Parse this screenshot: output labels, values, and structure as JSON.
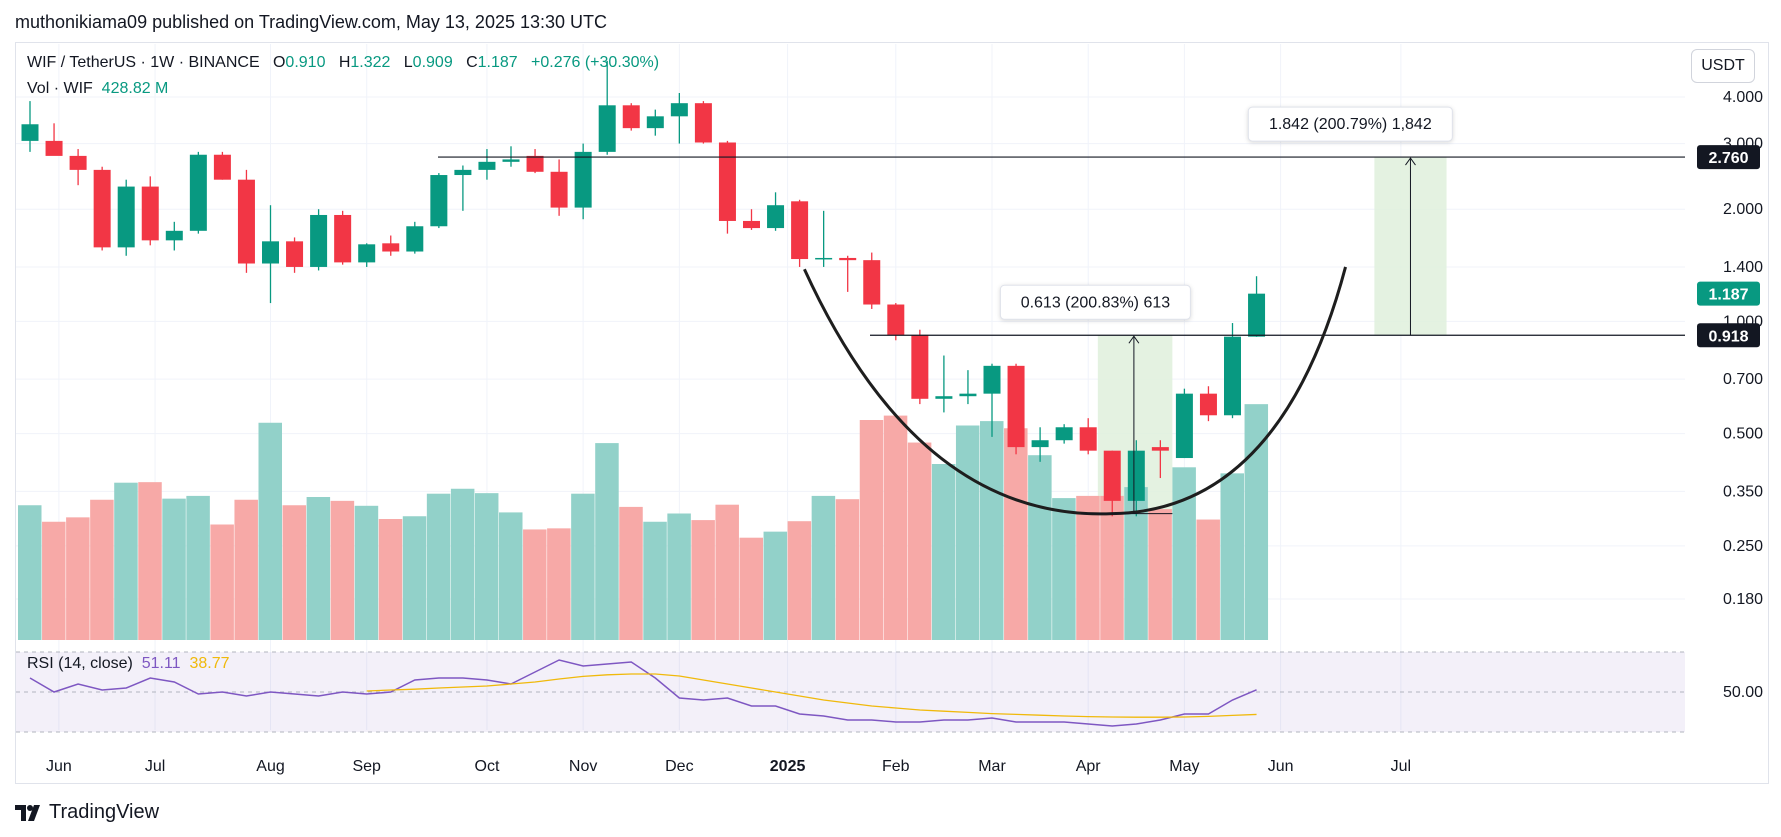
{
  "header": {
    "publisher": "muthonikiama09 published on TradingView.com, May 13, 2025 13:30 UTC"
  },
  "legend": {
    "symbol": "WIF / TetherUS · 1W · BINANCE",
    "o_label": "O",
    "o_value": "0.910",
    "h_label": "H",
    "h_value": "1.322",
    "l_label": "L",
    "l_value": "0.909",
    "c_label": "C",
    "c_value": "1.187",
    "change": "+0.276 (+30.30%)",
    "vol_label": "Vol · WIF",
    "vol_value": "428.82 M"
  },
  "rsi_legend": {
    "label": "RSI (14, close)",
    "rsi_value": "51.11",
    "ma_value": "38.77"
  },
  "currency": "USDT",
  "footer": {
    "brand": "TradingView"
  },
  "colors": {
    "up": "#089981",
    "down": "#f23645",
    "vol_up": "#92d1c9",
    "vol_down": "#f7a9a7",
    "rsi": "#7e57c2",
    "rsi_ma": "#f0b90b",
    "measure_fill": "#dff0dc"
  },
  "chart_data": {
    "type": "candlestick",
    "symbol": "WIF / TetherUS",
    "interval": "1W",
    "exchange": "BINANCE",
    "y_scale": "log",
    "y_ticks": [
      "4.000",
      "3.000",
      "2.000",
      "1.400",
      "1.000",
      "0.700",
      "0.500",
      "0.350",
      "0.250",
      "0.180"
    ],
    "x_ticks": [
      "Jun",
      "Jul",
      "Aug",
      "Sep",
      "Oct",
      "Nov",
      "Dec",
      "2025",
      "Feb",
      "Mar",
      "Apr",
      "May",
      "Jun",
      "Jul"
    ],
    "candles": [
      {
        "o": 3.05,
        "h": 3.9,
        "l": 2.85,
        "c": 3.38,
        "v": 245
      },
      {
        "o": 3.05,
        "h": 3.4,
        "l": 2.8,
        "c": 2.78,
        "v": 215
      },
      {
        "o": 2.78,
        "h": 2.9,
        "l": 2.32,
        "c": 2.55,
        "v": 223
      },
      {
        "o": 2.55,
        "h": 2.6,
        "l": 1.55,
        "c": 1.58,
        "v": 255
      },
      {
        "o": 1.58,
        "h": 2.4,
        "l": 1.5,
        "c": 2.3,
        "v": 286
      },
      {
        "o": 2.3,
        "h": 2.45,
        "l": 1.6,
        "c": 1.65,
        "v": 287
      },
      {
        "o": 1.65,
        "h": 1.85,
        "l": 1.55,
        "c": 1.75,
        "v": 257
      },
      {
        "o": 1.75,
        "h": 2.85,
        "l": 1.72,
        "c": 2.8,
        "v": 262
      },
      {
        "o": 2.8,
        "h": 2.85,
        "l": 2.4,
        "c": 2.4,
        "v": 210
      },
      {
        "o": 2.4,
        "h": 2.55,
        "l": 1.35,
        "c": 1.43,
        "v": 255
      },
      {
        "o": 1.43,
        "h": 2.05,
        "l": 1.12,
        "c": 1.64,
        "v": 395
      },
      {
        "o": 1.64,
        "h": 1.68,
        "l": 1.35,
        "c": 1.4,
        "v": 245
      },
      {
        "o": 1.4,
        "h": 2.0,
        "l": 1.37,
        "c": 1.93,
        "v": 260
      },
      {
        "o": 1.93,
        "h": 1.98,
        "l": 1.42,
        "c": 1.44,
        "v": 253
      },
      {
        "o": 1.44,
        "h": 1.62,
        "l": 1.4,
        "c": 1.61,
        "v": 244
      },
      {
        "o": 1.62,
        "h": 1.7,
        "l": 1.5,
        "c": 1.54,
        "v": 220
      },
      {
        "o": 1.54,
        "h": 1.85,
        "l": 1.52,
        "c": 1.8,
        "v": 225
      },
      {
        "o": 1.8,
        "h": 2.5,
        "l": 1.78,
        "c": 2.47,
        "v": 266
      },
      {
        "o": 2.47,
        "h": 2.62,
        "l": 1.98,
        "c": 2.55,
        "v": 275
      },
      {
        "o": 2.55,
        "h": 2.9,
        "l": 2.4,
        "c": 2.68,
        "v": 267
      },
      {
        "o": 2.68,
        "h": 2.95,
        "l": 2.6,
        "c": 2.72,
        "v": 232
      },
      {
        "o": 2.78,
        "h": 2.9,
        "l": 2.5,
        "c": 2.52,
        "v": 201
      },
      {
        "o": 2.52,
        "h": 2.72,
        "l": 1.92,
        "c": 2.02,
        "v": 203
      },
      {
        "o": 2.02,
        "h": 3.0,
        "l": 1.88,
        "c": 2.85,
        "v": 266
      },
      {
        "o": 2.85,
        "h": 5.0,
        "l": 2.8,
        "c": 3.8,
        "v": 358
      },
      {
        "o": 3.8,
        "h": 3.85,
        "l": 3.25,
        "c": 3.3,
        "v": 242
      },
      {
        "o": 3.3,
        "h": 3.7,
        "l": 3.15,
        "c": 3.55,
        "v": 215
      },
      {
        "o": 3.55,
        "h": 4.1,
        "l": 3.0,
        "c": 3.85,
        "v": 230
      },
      {
        "o": 3.85,
        "h": 3.9,
        "l": 3.0,
        "c": 3.02,
        "v": 218
      },
      {
        "o": 3.02,
        "h": 3.05,
        "l": 1.72,
        "c": 1.86,
        "v": 246
      },
      {
        "o": 1.86,
        "h": 2.0,
        "l": 1.76,
        "c": 1.78,
        "v": 186
      },
      {
        "o": 1.78,
        "h": 2.22,
        "l": 1.75,
        "c": 2.05,
        "v": 197
      },
      {
        "o": 2.1,
        "h": 2.12,
        "l": 1.4,
        "c": 1.47,
        "v": 216
      },
      {
        "o": 1.47,
        "h": 1.98,
        "l": 1.4,
        "c": 1.48,
        "v": 262
      },
      {
        "o": 1.48,
        "h": 1.5,
        "l": 1.2,
        "c": 1.46,
        "v": 256
      },
      {
        "o": 1.46,
        "h": 1.53,
        "l": 1.08,
        "c": 1.11,
        "v": 400
      },
      {
        "o": 1.11,
        "h": 1.12,
        "l": 0.89,
        "c": 0.92,
        "v": 408
      },
      {
        "o": 0.92,
        "h": 0.95,
        "l": 0.6,
        "c": 0.62,
        "v": 359
      },
      {
        "o": 0.62,
        "h": 0.81,
        "l": 0.57,
        "c": 0.63,
        "v": 320
      },
      {
        "o": 0.63,
        "h": 0.74,
        "l": 0.6,
        "c": 0.64,
        "v": 390
      },
      {
        "o": 0.64,
        "h": 0.77,
        "l": 0.49,
        "c": 0.76,
        "v": 398
      },
      {
        "o": 0.76,
        "h": 0.77,
        "l": 0.44,
        "c": 0.46,
        "v": 385
      },
      {
        "o": 0.46,
        "h": 0.52,
        "l": 0.42,
        "c": 0.48,
        "v": 336
      },
      {
        "o": 0.48,
        "h": 0.53,
        "l": 0.47,
        "c": 0.52,
        "v": 258
      },
      {
        "o": 0.52,
        "h": 0.55,
        "l": 0.44,
        "c": 0.45,
        "v": 262
      },
      {
        "o": 0.45,
        "h": 0.45,
        "l": 0.3,
        "c": 0.33,
        "v": 262
      },
      {
        "o": 0.33,
        "h": 0.48,
        "l": 0.3,
        "c": 0.45,
        "v": 278
      },
      {
        "o": 0.46,
        "h": 0.48,
        "l": 0.38,
        "c": 0.45,
        "v": 238
      },
      {
        "o": 0.43,
        "h": 0.66,
        "l": 0.43,
        "c": 0.64,
        "v": 314
      },
      {
        "o": 0.64,
        "h": 0.67,
        "l": 0.54,
        "c": 0.56,
        "v": 219
      },
      {
        "o": 0.56,
        "h": 0.99,
        "l": 0.55,
        "c": 0.91,
        "v": 303
      },
      {
        "o": 0.91,
        "h": 1.322,
        "l": 0.909,
        "c": 1.187,
        "v": 428.82
      }
    ],
    "horizontal_lines": [
      2.76,
      0.918
    ],
    "price_labels": {
      "current": "1.187",
      "resistance_top": "2.760",
      "resistance_neckline": "0.918"
    },
    "measurements": [
      {
        "label": "0.613 (200.83%) 613",
        "from": 0.305,
        "to": 0.918
      },
      {
        "label": "1.842 (200.79%) 1,842",
        "from": 0.918,
        "to": 2.76
      }
    ],
    "rsi": {
      "label": "RSI (14, close)",
      "level": 50,
      "level_label": "50.00",
      "rsi": [
        57,
        50,
        54,
        51,
        52,
        57,
        55,
        49,
        50,
        48,
        50,
        49,
        48,
        50,
        49,
        50,
        56,
        57,
        57,
        56,
        54,
        60,
        66,
        63,
        64,
        65,
        57,
        47,
        46,
        47,
        43,
        43,
        39,
        38,
        36,
        36,
        35,
        35,
        36,
        36,
        37,
        35,
        35,
        35,
        34,
        33,
        34,
        36,
        39,
        39,
        46,
        51.11
      ],
      "ma": [
        null,
        null,
        null,
        null,
        null,
        null,
        null,
        null,
        null,
        null,
        null,
        null,
        null,
        null,
        50.5,
        51,
        51.4,
        52,
        52.5,
        53,
        54,
        55,
        56.5,
        57.8,
        58.6,
        59,
        59,
        58,
        56,
        54,
        52,
        50,
        48,
        46,
        44.5,
        43,
        42,
        41,
        40.4,
        39.8,
        39.2,
        38.8,
        38.4,
        38,
        37.7,
        37.5,
        37.4,
        37.4,
        37.5,
        37.8,
        38.3,
        38.77
      ]
    }
  }
}
